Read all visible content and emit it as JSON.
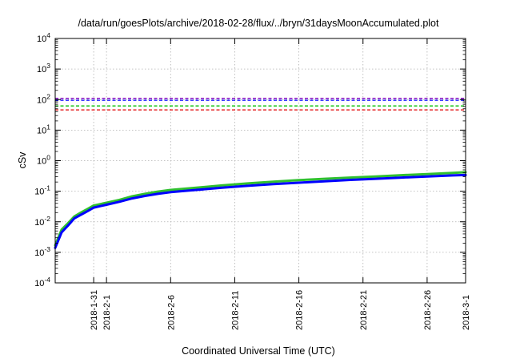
{
  "chart_data": {
    "type": "line",
    "title": "/data/run/goesPlots/archive/2018-02-28/flux/../bryn/31daysMoonAccumulated.plot",
    "xlabel": "Coordinated Universal Time (UTC)",
    "ylabel": "cSv",
    "y_scale": "log",
    "ylim": [
      0.0001,
      10000
    ],
    "xlim": [
      "2018-01-28",
      "2018-03-01"
    ],
    "grid": true,
    "legend": "none",
    "y_ticks": [
      {
        "value": 0.0001,
        "base": "10",
        "exp": "-4"
      },
      {
        "value": 0.001,
        "base": "10",
        "exp": "-3"
      },
      {
        "value": 0.01,
        "base": "10",
        "exp": "-2"
      },
      {
        "value": 0.1,
        "base": "10",
        "exp": "-1"
      },
      {
        "value": 1,
        "base": "10",
        "exp": "0"
      },
      {
        "value": 10,
        "base": "10",
        "exp": "1"
      },
      {
        "value": 100,
        "base": "10",
        "exp": "2"
      },
      {
        "value": 1000,
        "base": "10",
        "exp": "3"
      },
      {
        "value": 10000,
        "base": "10",
        "exp": "4"
      }
    ],
    "x_ticks": [
      {
        "date": "2018-01-31",
        "label": "2018-1-31"
      },
      {
        "date": "2018-02-01",
        "label": "2018-2-1"
      },
      {
        "date": "2018-02-06",
        "label": "2018-2-6"
      },
      {
        "date": "2018-02-11",
        "label": "2018-2-11"
      },
      {
        "date": "2018-02-16",
        "label": "2018-2-16"
      },
      {
        "date": "2018-02-21",
        "label": "2018-2-21"
      },
      {
        "date": "2018-02-26",
        "label": "2018-2-26"
      },
      {
        "date": "2018-03-01",
        "label": "2018-3-1"
      }
    ],
    "reference_lines": [
      {
        "y": 110,
        "color": "#8000c0",
        "style": "dashed"
      },
      {
        "y": 95,
        "color": "#0000ff",
        "style": "dashed"
      },
      {
        "y": 62,
        "color": "#00c000",
        "style": "dashed"
      },
      {
        "y": 46,
        "color": "#e00000",
        "style": "dashed"
      }
    ],
    "series": [
      {
        "color": "#30c030",
        "x": [
          "2018-01-28",
          "2018-01-28T12:00",
          "2018-01-29",
          "2018-01-29T12:00",
          "2018-01-30",
          "2018-01-30T12:00",
          "2018-01-31",
          "2018-02-01",
          "2018-02-02",
          "2018-02-03",
          "2018-02-04",
          "2018-02-05",
          "2018-02-06",
          "2018-02-08",
          "2018-02-10",
          "2018-02-12",
          "2018-02-14",
          "2018-02-16",
          "2018-02-18",
          "2018-02-20",
          "2018-02-22",
          "2018-02-24",
          "2018-02-26",
          "2018-02-28",
          "2018-03-01"
        ],
        "y": [
          0.0017,
          0.0055,
          0.009,
          0.015,
          0.02,
          0.026,
          0.034,
          0.042,
          0.052,
          0.068,
          0.082,
          0.097,
          0.11,
          0.13,
          0.155,
          0.18,
          0.205,
          0.23,
          0.255,
          0.28,
          0.305,
          0.335,
          0.365,
          0.4,
          0.42
        ]
      },
      {
        "color": "#0000ff",
        "x": [
          "2018-01-28",
          "2018-01-28T12:00",
          "2018-01-29",
          "2018-01-29T12:00",
          "2018-01-30",
          "2018-01-30T12:00",
          "2018-01-31",
          "2018-02-01",
          "2018-02-02",
          "2018-02-03",
          "2018-02-04",
          "2018-02-05",
          "2018-02-06",
          "2018-02-08",
          "2018-02-10",
          "2018-02-12",
          "2018-02-14",
          "2018-02-16",
          "2018-02-18",
          "2018-02-20",
          "2018-02-22",
          "2018-02-24",
          "2018-02-26",
          "2018-02-28",
          "2018-03-01"
        ],
        "y": [
          0.0014,
          0.0045,
          0.0075,
          0.013,
          0.017,
          0.022,
          0.029,
          0.036,
          0.045,
          0.058,
          0.07,
          0.082,
          0.093,
          0.11,
          0.13,
          0.15,
          0.17,
          0.19,
          0.21,
          0.235,
          0.255,
          0.28,
          0.305,
          0.33,
          0.34
        ]
      }
    ]
  }
}
